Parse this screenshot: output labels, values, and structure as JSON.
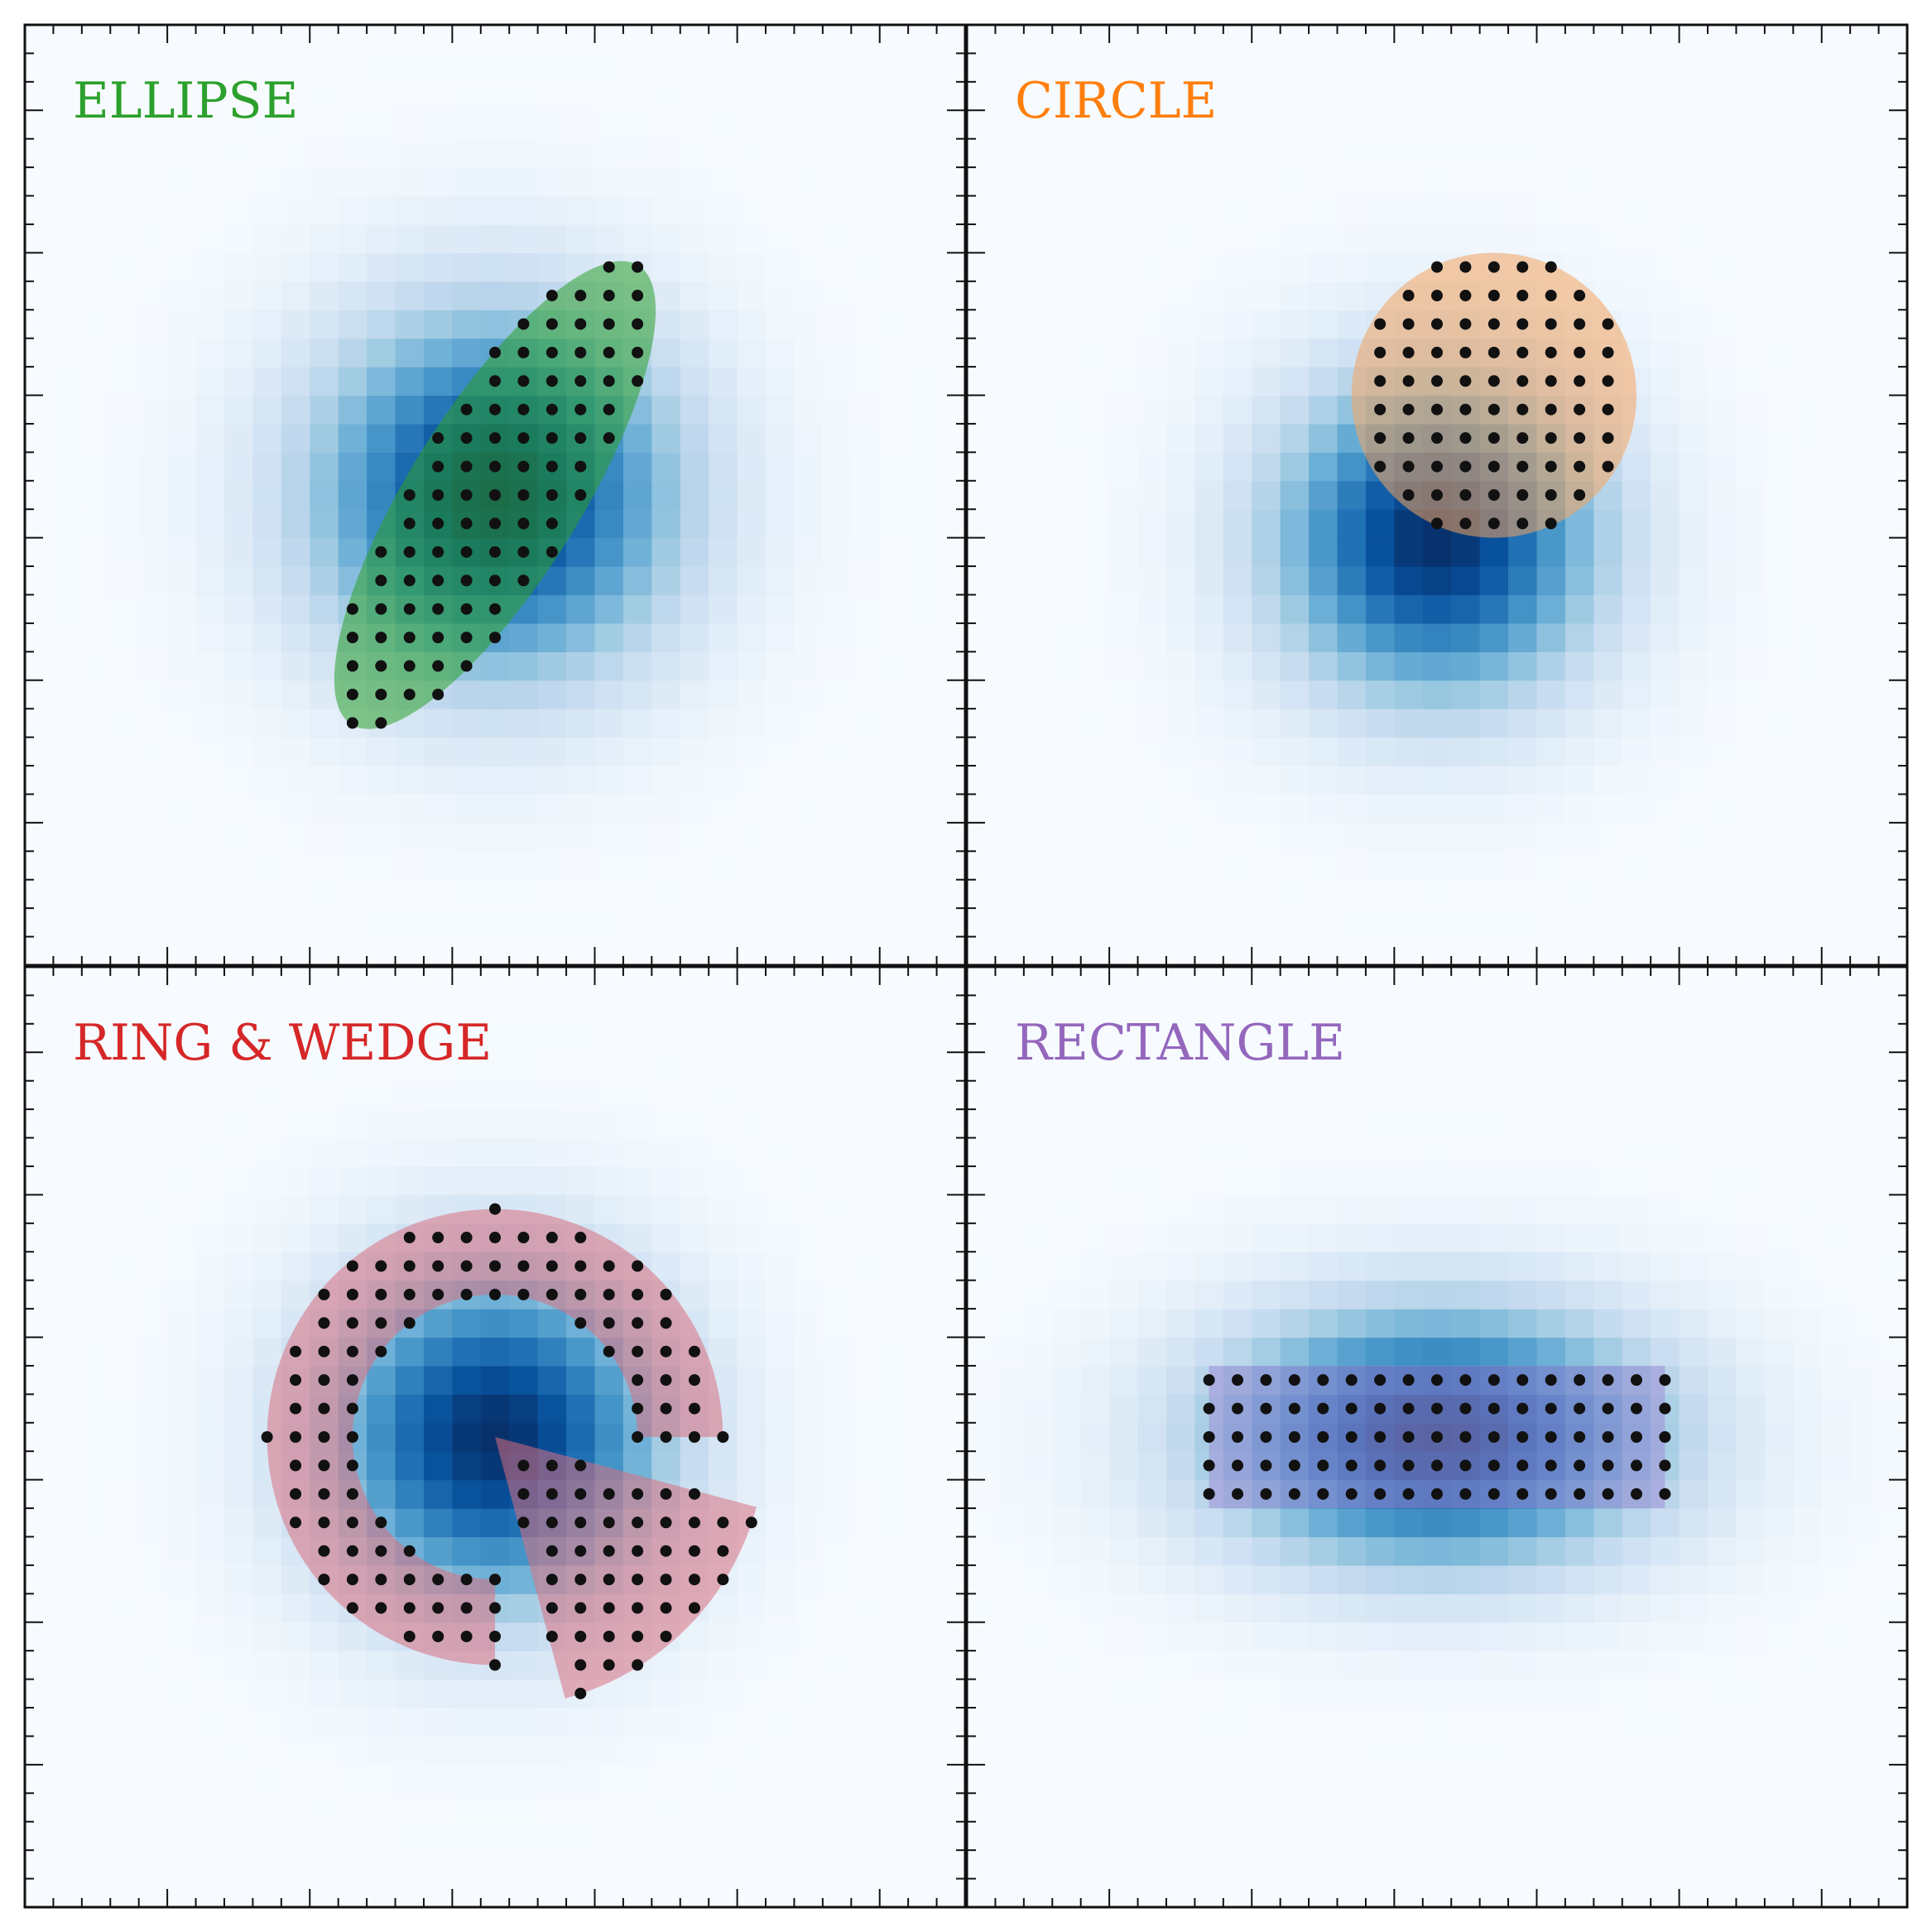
{
  "chart_data": [
    {
      "type": "heatmap",
      "title": "ELLIPSE",
      "title_color": "#2ca02c",
      "shape": "ellipse",
      "shape_color": "#2ca02c",
      "xlim": [
        0,
        33
      ],
      "ylim": [
        0,
        33
      ],
      "gaussian": {
        "cx": 16.5,
        "cy": 16.5,
        "sx": 4.5,
        "sy": 4.5
      },
      "region": {
        "cx": 16.5,
        "cy": 16.5,
        "a": 9.5,
        "b": 3.0,
        "angle_deg": 58
      },
      "grid_on": false
    },
    {
      "type": "heatmap",
      "title": "CIRCLE",
      "title_color": "#ff7f0e",
      "shape": "circle",
      "shape_color": "#f4a460",
      "xlim": [
        0,
        33
      ],
      "ylim": [
        0,
        33
      ],
      "gaussian": {
        "cx": 16.5,
        "cy": 15.0,
        "sx": 4.0,
        "sy": 4.0
      },
      "region": {
        "cx": 18.5,
        "cy": 20.0,
        "r": 5.0
      },
      "grid_on": false
    },
    {
      "type": "heatmap",
      "title": "RING & WEDGE",
      "title_color": "#d62728",
      "shape": "ring_wedge",
      "shape_color": "#d9707f",
      "xlim": [
        0,
        33
      ],
      "ylim": [
        0,
        33
      ],
      "gaussian": {
        "cx": 16.5,
        "cy": 16.5,
        "sx": 4.2,
        "sy": 4.2
      },
      "region": {
        "cx": 16.5,
        "cy": 16.5,
        "ring": {
          "r_in": 5.0,
          "r_out": 8.0,
          "theta1_deg": 0,
          "theta2_deg": 270
        },
        "wedge": {
          "r": 9.5,
          "theta1_deg": 285,
          "theta2_deg": 345
        }
      },
      "grid_on": false
    },
    {
      "type": "heatmap",
      "title": "RECTANGLE",
      "title_color": "#9467bd",
      "shape": "rectangle",
      "shape_color": "#9f8fd6",
      "xlim": [
        0,
        33
      ],
      "ylim": [
        0,
        33
      ],
      "gaussian": {
        "cx": 16.5,
        "cy": 16.5,
        "sx": 5.5,
        "sy": 3.2
      },
      "region": {
        "cx": 16.5,
        "cy": 16.5,
        "w": 16.0,
        "h": 5.0
      },
      "grid_on": false
    }
  ]
}
